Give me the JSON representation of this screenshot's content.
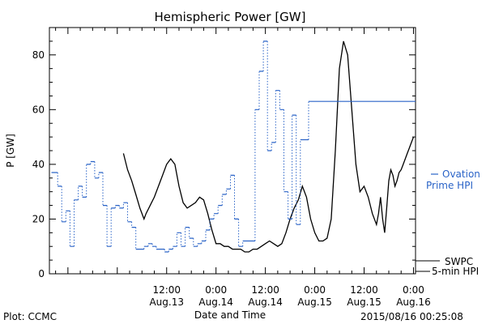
{
  "footer": {
    "left": "Plot: CCMC",
    "right": "2015/08/16 00:25:08"
  },
  "chart_data": {
    "type": "line",
    "title": "Hemispheric Power [GW]",
    "xlabel": "Date and Time",
    "ylabel": "P [GW]",
    "ylim": [
      0,
      90
    ],
    "xlim_hours": [
      -16.5,
      72.5
    ],
    "y_ticks": [
      0,
      20,
      40,
      60,
      80
    ],
    "x_ticks": [
      {
        "t": 12,
        "line1": "12:00",
        "line2": "Aug.13"
      },
      {
        "t": 24,
        "line1": "0:00",
        "line2": "Aug.14"
      },
      {
        "t": 36,
        "line1": "12:00",
        "line2": "Aug.14"
      },
      {
        "t": 48,
        "line1": "0:00",
        "line2": "Aug.15"
      },
      {
        "t": 60,
        "line1": "12:00",
        "line2": "Aug.15"
      },
      {
        "t": 72,
        "line1": "0:00",
        "line2": "Aug.16"
      }
    ],
    "legend": {
      "ovation_line1": "Ovation",
      "ovation_line2": "Prime HPI",
      "swpc_line1": "SWPC",
      "swpc_line2": "5-min HPI",
      "ovation_color": "#2a63c7",
      "swpc_color": "#000000"
    },
    "series": [
      {
        "name": "SWPC 5-min HPI",
        "color": "#000000",
        "style": "solid",
        "t": [
          1.5,
          2.5,
          3.5,
          4.5,
          5.5,
          6.5,
          7,
          8,
          9,
          10,
          11,
          12,
          13,
          14,
          15,
          16,
          17,
          18,
          19,
          20,
          21,
          22,
          23,
          24,
          25,
          26,
          27,
          28,
          29,
          30,
          31,
          32,
          33,
          34,
          35,
          36,
          37,
          38,
          39,
          40,
          41,
          42,
          43,
          44,
          45,
          46,
          47,
          48,
          49,
          50,
          51,
          52,
          53,
          54,
          55,
          56,
          57,
          58,
          59,
          60,
          61,
          62,
          63,
          63.5,
          64,
          64.5,
          65,
          65.5,
          66,
          66.5,
          67,
          67.5,
          68,
          68.5,
          69,
          69.5,
          70,
          70.5,
          71,
          71.5,
          72
        ],
        "values": [
          44,
          38,
          34,
          29,
          24,
          20,
          22,
          25,
          28,
          32,
          36,
          40,
          42,
          40,
          32,
          26,
          24,
          25,
          26,
          28,
          27,
          22,
          16,
          11,
          11,
          10,
          10,
          9,
          9,
          9,
          8,
          8,
          9,
          9,
          10,
          11,
          12,
          11,
          10,
          11,
          15,
          20,
          24,
          27,
          32,
          28,
          20,
          15,
          12,
          12,
          13,
          20,
          45,
          75,
          85,
          80,
          60,
          40,
          30,
          32,
          28,
          22,
          18,
          22,
          28,
          20,
          15,
          24,
          34,
          38,
          36,
          32,
          34,
          37,
          38,
          40,
          42,
          44,
          46,
          48,
          50
        ]
      },
      {
        "name": "Ovation Prime HPI",
        "color": "#2a63c7",
        "style": "steps",
        "t": [
          -16,
          -14.5,
          -13.5,
          -12.5,
          -11.5,
          -10.5,
          -9.5,
          -8.5,
          -7.5,
          -6.5,
          -5.5,
          -4.5,
          -3.5,
          -2.5,
          -1.5,
          -0.5,
          0.5,
          1.5,
          2.5,
          3.5,
          4.5,
          5.5,
          6.5,
          7.5,
          8.5,
          9.5,
          10.5,
          11.5,
          12.5,
          13.5,
          14.5,
          15.5,
          16.5,
          17.5,
          18.5,
          19.5,
          20.5,
          21.5,
          22.5,
          23.5,
          24.5,
          25.5,
          26.5,
          27.5,
          28.5,
          29.5,
          30.5,
          31.5,
          32.5,
          33.5,
          34.5,
          35.5,
          36.5,
          37.5,
          38.5,
          39.5,
          40.5,
          41.5,
          42.5,
          43.5,
          44.5,
          45.5,
          46.5,
          47.5,
          48.5,
          49.5,
          50.5,
          51.5,
          52.5,
          53.5,
          54.5,
          55.5,
          56.5,
          57.5,
          58.5,
          59.5,
          60.5,
          61.5,
          62.5,
          63.5,
          64.5,
          65.5,
          66.5,
          67.5,
          68.5,
          69.5,
          70.5,
          71.5
        ],
        "values": [
          37,
          32,
          19,
          23,
          10,
          27,
          32,
          28,
          40,
          41,
          35,
          37,
          25,
          10,
          24,
          25,
          24,
          26,
          19,
          17,
          9,
          9,
          10,
          11,
          10,
          9,
          9,
          8,
          9,
          10,
          15,
          10,
          17,
          13,
          10,
          11,
          12,
          16,
          20,
          22,
          25,
          29,
          31,
          36,
          20,
          10,
          12,
          12,
          12,
          60,
          74,
          85,
          45,
          48,
          67,
          60,
          30,
          20,
          58,
          18,
          49,
          49,
          63,
          63,
          63,
          63,
          63,
          63,
          63,
          63,
          63,
          63,
          63,
          63,
          63,
          63,
          63,
          63,
          63,
          63,
          63,
          63,
          63,
          63,
          63,
          63,
          63,
          63
        ]
      }
    ]
  }
}
